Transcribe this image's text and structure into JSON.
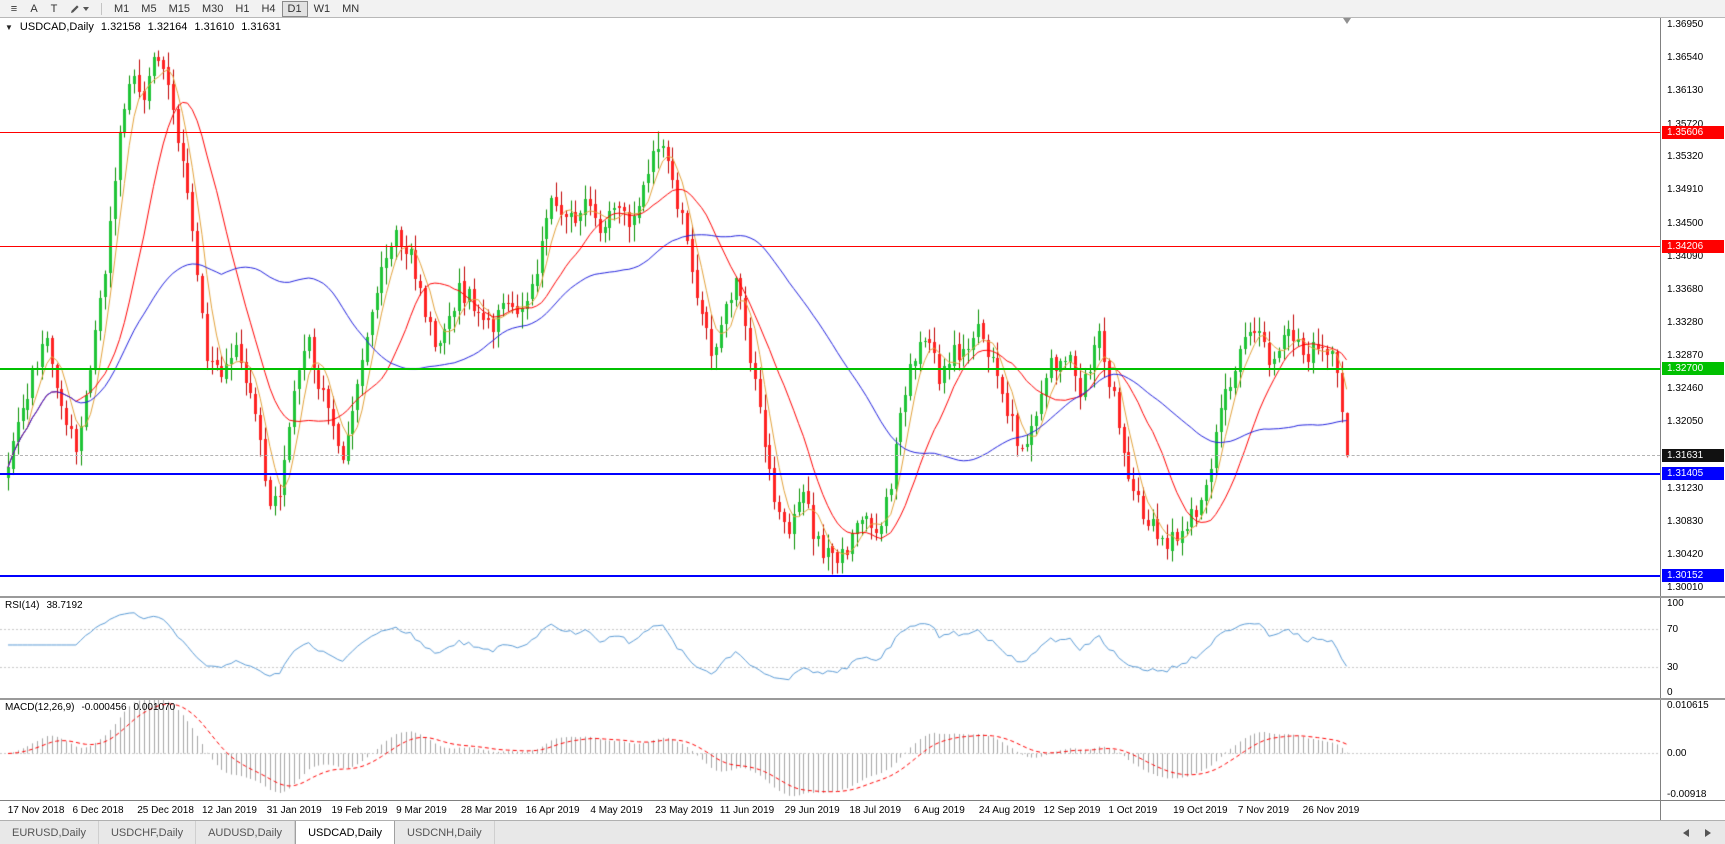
{
  "toolbar": {
    "tools": [
      {
        "name": "menu",
        "glyph": "≡"
      },
      {
        "name": "pointer",
        "glyph": "A"
      },
      {
        "name": "text",
        "glyph": "T"
      }
    ],
    "timeframes": [
      "M1",
      "M5",
      "M15",
      "M30",
      "H1",
      "H4",
      "D1",
      "W1",
      "MN"
    ],
    "active_timeframe": "D1"
  },
  "header": {
    "symbol": "USDCAD,Daily",
    "open": "1.32158",
    "high": "1.32164",
    "low": "1.31610",
    "close": "1.31631"
  },
  "price_axis": {
    "labels": [
      "1.36950",
      "1.36540",
      "1.36130",
      "1.35720",
      "1.35320",
      "1.34910",
      "1.34500",
      "1.34090",
      "1.33680",
      "1.33280",
      "1.32870",
      "1.32460",
      "1.32050",
      "1.31640",
      "1.31230",
      "1.30830",
      "1.30420",
      "1.30010"
    ],
    "values": [
      1.3695,
      1.3654,
      1.3613,
      1.3572,
      1.3532,
      1.3491,
      1.345,
      1.3409,
      1.3368,
      1.3328,
      1.3287,
      1.3246,
      1.3205,
      1.3164,
      1.3123,
      1.3083,
      1.3042,
      1.3001
    ]
  },
  "levels": [
    {
      "label": "1.35606",
      "value": 1.35606,
      "color": "#ff0000",
      "thickness": 1
    },
    {
      "label": "1.34206",
      "value": 1.34206,
      "color": "#ff0000",
      "thickness": 1
    },
    {
      "label": "1.32700",
      "value": 1.327,
      "color": "#00c000",
      "thickness": 2
    },
    {
      "label": "1.31405",
      "value": 1.31405,
      "color": "#0000ff",
      "thickness": 2
    },
    {
      "label": "1.30152",
      "value": 1.30152,
      "color": "#0000ff",
      "thickness": 2
    }
  ],
  "current_price": {
    "label": "1.31631",
    "value": 1.31631
  },
  "rsi": {
    "label": "RSI(14)",
    "value": "38.7192",
    "color": "#5b9bd5",
    "levels": [
      70,
      30
    ],
    "axis_labels": [
      "100",
      "70",
      "30",
      "0"
    ],
    "axis_values": [
      100,
      70,
      30,
      0
    ]
  },
  "macd": {
    "label": "MACD(12,26,9)",
    "main_value": "-0.000456",
    "signal_value": "0.001070",
    "axis_labels": [
      "0.010615",
      "0.00",
      "-0.00918"
    ],
    "axis_values": [
      0.010615,
      0,
      -0.00918
    ]
  },
  "date_axis": [
    "17 Nov 2018",
    "6 Dec 2018",
    "25 Dec 2018",
    "12 Jan 2019",
    "31 Jan 2019",
    "19 Feb 2019",
    "9 Mar 2019",
    "28 Mar 2019",
    "16 Apr 2019",
    "4 May 2019",
    "23 May 2019",
    "11 Jun 2019",
    "29 Jun 2019",
    "18 Jul 2019",
    "6 Aug 2019",
    "24 Aug 2019",
    "12 Sep 2019",
    "1 Oct 2019",
    "19 Oct 2019",
    "7 Nov 2019",
    "26 Nov 2019"
  ],
  "tabs": [
    {
      "label": "EURUSD,Daily",
      "active": false
    },
    {
      "label": "USDCHF,Daily",
      "active": false
    },
    {
      "label": "AUDUSD,Daily",
      "active": false
    },
    {
      "label": "USDCAD,Daily",
      "active": true
    },
    {
      "label": "USDCNH,Daily",
      "active": false
    }
  ],
  "chart_data": {
    "type": "candlestick",
    "symbol": "USDCAD",
    "period": "Daily",
    "bars": 277,
    "price_scale": {
      "top": 1.3702,
      "bottom": 1.299
    },
    "colors": {
      "up": "#1fc437",
      "up_wick": "#089000",
      "down": "#ff2222",
      "down_wick": "#c00000",
      "histogram": "#a6a6a6",
      "signal": "#ff0000",
      "grid_dotted": "#c8c8c8"
    },
    "close_waypoints": [
      [
        0,
        1.316
      ],
      [
        5,
        1.3265
      ],
      [
        8,
        1.331
      ],
      [
        11,
        1.3225
      ],
      [
        14,
        1.3168
      ],
      [
        17,
        1.327
      ],
      [
        20,
        1.339
      ],
      [
        23,
        1.356
      ],
      [
        26,
        1.3635
      ],
      [
        28,
        1.36
      ],
      [
        30,
        1.3648
      ],
      [
        33,
        1.3618
      ],
      [
        35,
        1.355
      ],
      [
        38,
        1.3445
      ],
      [
        41,
        1.3275
      ],
      [
        44,
        1.3255
      ],
      [
        47,
        1.3305
      ],
      [
        50,
        1.3245
      ],
      [
        54,
        1.3095
      ],
      [
        56,
        1.3125
      ],
      [
        59,
        1.325
      ],
      [
        62,
        1.33
      ],
      [
        66,
        1.3215
      ],
      [
        69,
        1.316
      ],
      [
        72,
        1.3245
      ],
      [
        76,
        1.3365
      ],
      [
        80,
        1.3438
      ],
      [
        83,
        1.3415
      ],
      [
        86,
        1.333
      ],
      [
        89,
        1.3295
      ],
      [
        93,
        1.337
      ],
      [
        96,
        1.335
      ],
      [
        100,
        1.3315
      ],
      [
        103,
        1.336
      ],
      [
        106,
        1.3335
      ],
      [
        109,
        1.3385
      ],
      [
        112,
        1.3475
      ],
      [
        115,
        1.345
      ],
      [
        119,
        1.347
      ],
      [
        122,
        1.3435
      ],
      [
        125,
        1.348
      ],
      [
        128,
        1.3445
      ],
      [
        131,
        1.349
      ],
      [
        134,
        1.355
      ],
      [
        136,
        1.3515
      ],
      [
        139,
        1.345
      ],
      [
        142,
        1.3365
      ],
      [
        145,
        1.3285
      ],
      [
        148,
        1.334
      ],
      [
        150,
        1.339
      ],
      [
        153,
        1.3285
      ],
      [
        156,
        1.3185
      ],
      [
        158,
        1.3095
      ],
      [
        161,
        1.307
      ],
      [
        164,
        1.3115
      ],
      [
        167,
        1.3052
      ],
      [
        170,
        1.3032
      ],
      [
        173,
        1.3042
      ],
      [
        176,
        1.3082
      ],
      [
        179,
        1.3062
      ],
      [
        182,
        1.313
      ],
      [
        184,
        1.3225
      ],
      [
        186,
        1.3272
      ],
      [
        189,
        1.3312
      ],
      [
        192,
        1.3262
      ],
      [
        195,
        1.3292
      ],
      [
        198,
        1.3282
      ],
      [
        200,
        1.3312
      ],
      [
        203,
        1.3272
      ],
      [
        206,
        1.3222
      ],
      [
        209,
        1.3168
      ],
      [
        212,
        1.3205
      ],
      [
        215,
        1.3272
      ],
      [
        218,
        1.3292
      ],
      [
        221,
        1.3245
      ],
      [
        223,
        1.3262
      ],
      [
        225,
        1.3315
      ],
      [
        228,
        1.3232
      ],
      [
        231,
        1.3132
      ],
      [
        234,
        1.3092
      ],
      [
        236,
        1.3082
      ],
      [
        239,
        1.3048
      ],
      [
        242,
        1.3072
      ],
      [
        245,
        1.3092
      ],
      [
        248,
        1.3155
      ],
      [
        251,
        1.3235
      ],
      [
        254,
        1.3292
      ],
      [
        257,
        1.3315
      ],
      [
        260,
        1.3285
      ],
      [
        262,
        1.3302
      ],
      [
        265,
        1.3312
      ],
      [
        268,
        1.3285
      ],
      [
        271,
        1.33
      ],
      [
        273,
        1.3285
      ],
      [
        274,
        1.3268
      ],
      [
        275,
        1.3216
      ],
      [
        276,
        1.31631
      ]
    ],
    "last_bar": {
      "open": 1.32158,
      "high": 1.32164,
      "low": 1.3161,
      "close": 1.31631
    },
    "moving_averages": [
      {
        "period": 5,
        "color": "#e2a23b"
      },
      {
        "period": 15,
        "color": "#ff0000"
      },
      {
        "period": 45,
        "color": "#2020dd"
      }
    ],
    "rsi_period": 14,
    "macd_params": [
      12,
      26,
      9
    ],
    "macd_scale": {
      "top": 0.010615,
      "bottom": -0.00918
    }
  }
}
